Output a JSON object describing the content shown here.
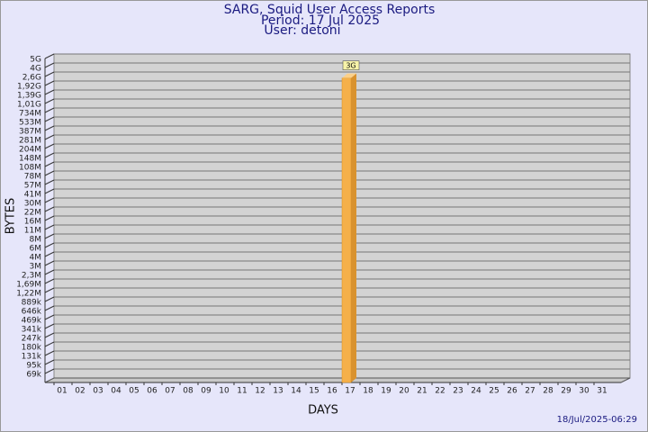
{
  "chart_data": {
    "type": "bar",
    "title": "SARG, Squid User Access Reports",
    "subtitle": [
      "Period: 17 Jul 2025",
      "User: detoni"
    ],
    "xlabel": "DAYS",
    "ylabel": "BYTES",
    "footer": "18/Jul/2025-06:29",
    "categories": [
      "01",
      "02",
      "03",
      "04",
      "05",
      "06",
      "07",
      "08",
      "09",
      "10",
      "11",
      "12",
      "13",
      "14",
      "15",
      "16",
      "17",
      "18",
      "19",
      "20",
      "21",
      "22",
      "23",
      "24",
      "25",
      "26",
      "27",
      "28",
      "29",
      "30",
      "31"
    ],
    "series": [
      {
        "color": "#f5b04a",
        "values": [
          null,
          null,
          null,
          null,
          null,
          null,
          null,
          null,
          null,
          null,
          null,
          null,
          null,
          null,
          null,
          null,
          3000000000,
          null,
          null,
          null,
          null,
          null,
          null,
          null,
          null,
          null,
          null,
          null,
          null,
          null,
          null
        ],
        "value_labels": [
          null,
          null,
          null,
          null,
          null,
          null,
          null,
          null,
          null,
          null,
          null,
          null,
          null,
          null,
          null,
          null,
          "3G",
          null,
          null,
          null,
          null,
          null,
          null,
          null,
          null,
          null,
          null,
          null,
          null,
          null,
          null
        ]
      }
    ],
    "ylim": [
      50000,
      5000000000
    ],
    "yticks": [
      {
        "value": 5000000000,
        "label": "5G"
      },
      {
        "value": 4000000000,
        "label": "4G"
      },
      {
        "value": 2600000000,
        "label": "2,6G"
      },
      {
        "value": 1920000000,
        "label": "1,92G"
      },
      {
        "value": 1390000000,
        "label": "1,39G"
      },
      {
        "value": 1010000000,
        "label": "1,01G"
      },
      {
        "value": 734000000,
        "label": "734M"
      },
      {
        "value": 533000000,
        "label": "533M"
      },
      {
        "value": 387000000,
        "label": "387M"
      },
      {
        "value": 281000000,
        "label": "281M"
      },
      {
        "value": 204000000,
        "label": "204M"
      },
      {
        "value": 148000000,
        "label": "148M"
      },
      {
        "value": 108000000,
        "label": "108M"
      },
      {
        "value": 78000000,
        "label": "78M"
      },
      {
        "value": 57000000,
        "label": "57M"
      },
      {
        "value": 41000000,
        "label": "41M"
      },
      {
        "value": 30000000,
        "label": "30M"
      },
      {
        "value": 22000000,
        "label": "22M"
      },
      {
        "value": 16000000,
        "label": "16M"
      },
      {
        "value": 11000000,
        "label": "11M"
      },
      {
        "value": 8000000,
        "label": "8M"
      },
      {
        "value": 6000000,
        "label": "6M"
      },
      {
        "value": 4000000,
        "label": "4M"
      },
      {
        "value": 3000000,
        "label": "3M"
      },
      {
        "value": 2300000,
        "label": "2,3M"
      },
      {
        "value": 1690000,
        "label": "1,69M"
      },
      {
        "value": 1220000,
        "label": "1,22M"
      },
      {
        "value": 889000,
        "label": "889k"
      },
      {
        "value": 646000,
        "label": "646k"
      },
      {
        "value": 469000,
        "label": "469k"
      },
      {
        "value": 341000,
        "label": "341k"
      },
      {
        "value": 247000,
        "label": "247k"
      },
      {
        "value": 180000,
        "label": "180k"
      },
      {
        "value": 131000,
        "label": "131k"
      },
      {
        "value": 95000,
        "label": "95k"
      },
      {
        "value": 69000,
        "label": "69k"
      }
    ],
    "grid": true
  }
}
